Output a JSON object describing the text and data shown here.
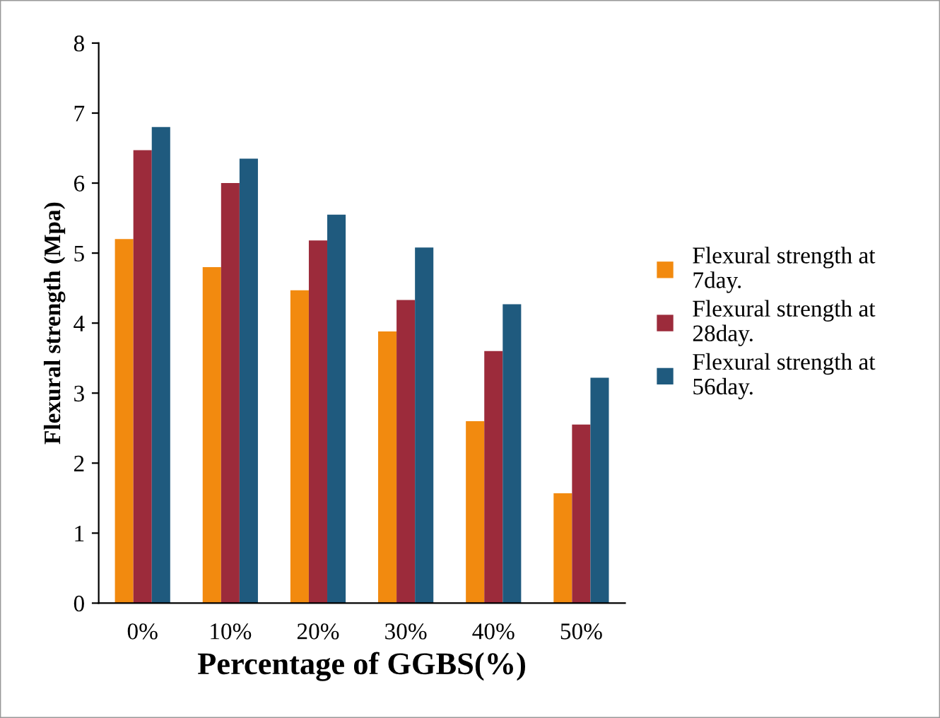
{
  "chart_data": {
    "type": "bar",
    "xlabel": "Percentage of GGBS(%)",
    "ylabel": "Flexural strength (Mpa)",
    "categories": [
      "0%",
      "10%",
      "20%",
      "30%",
      "40%",
      "50%"
    ],
    "series": [
      {
        "name": "Flexural strength at 7day.",
        "color": "#f28a0f",
        "values": [
          5.2,
          4.8,
          4.47,
          3.88,
          2.6,
          1.57
        ]
      },
      {
        "name": "Flexural strength at 28day.",
        "color": "#9c2b3b",
        "values": [
          6.47,
          6.0,
          5.18,
          4.33,
          3.6,
          2.55
        ]
      },
      {
        "name": "Flexural strength at 56day.",
        "color": "#1f5a7e",
        "values": [
          6.8,
          6.35,
          5.55,
          5.08,
          4.27,
          3.22
        ]
      }
    ],
    "ylim": [
      0,
      8
    ],
    "yticks": [
      0,
      1,
      2,
      3,
      4,
      5,
      6,
      7,
      8
    ],
    "legend": "right"
  }
}
